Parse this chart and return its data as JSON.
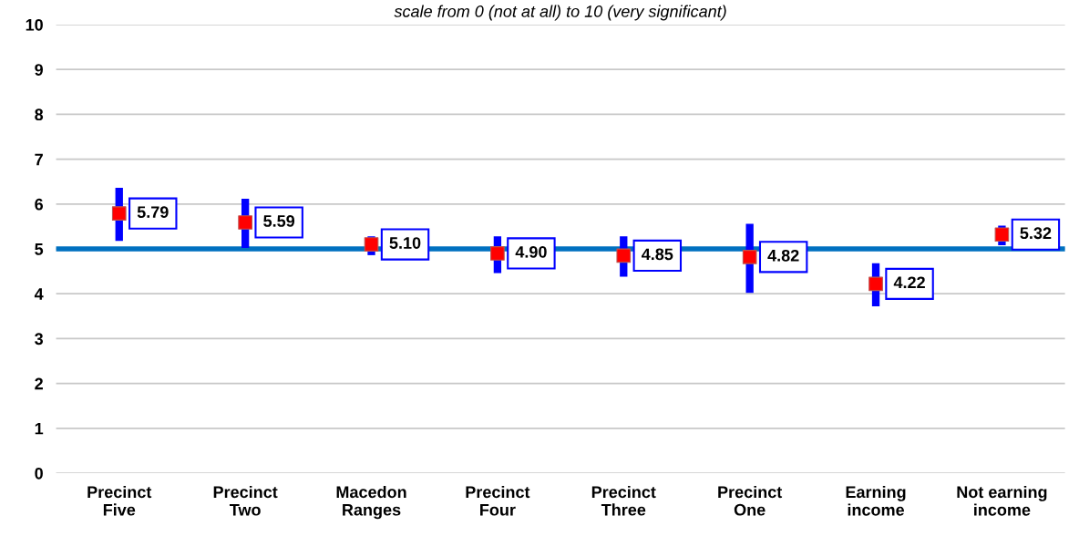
{
  "chart_data": {
    "type": "scatter",
    "subtitle": "scale from 0 (not at all) to 10 (very significant)",
    "categories": [
      "Precinct\nFive",
      "Precinct\nTwo",
      "Macedon\nRanges",
      "Precinct\nFour",
      "Precinct\nThree",
      "Precinct\nOne",
      "Earning\nincome",
      "Not earning\nincome"
    ],
    "series": [
      {
        "color": "#ff0000",
        "values": [
          5.79,
          5.59,
          5.1,
          4.9,
          4.85,
          4.82,
          4.22,
          5.32
        ],
        "errors": [
          [
            5.18,
            6.36
          ],
          [
            5.02,
            6.12
          ],
          [
            4.86,
            5.28
          ],
          [
            4.46,
            5.28
          ],
          [
            4.38,
            5.28
          ],
          [
            4.02,
            5.56
          ],
          [
            3.72,
            4.68
          ],
          [
            5.08,
            5.52
          ]
        ],
        "value_labels": [
          "5.79",
          "5.59",
          "5.10",
          "4.90",
          "4.85",
          "4.82",
          "4.22",
          "5.32"
        ]
      }
    ],
    "marker": "square",
    "ylim": [
      0,
      10
    ],
    "yticks": [
      0,
      1,
      2,
      3,
      4,
      5,
      6,
      7,
      8,
      9,
      10
    ],
    "grid": "y",
    "ref_lines": [
      {
        "axis": "y",
        "value": 5,
        "color": "#0070c0"
      }
    ]
  }
}
